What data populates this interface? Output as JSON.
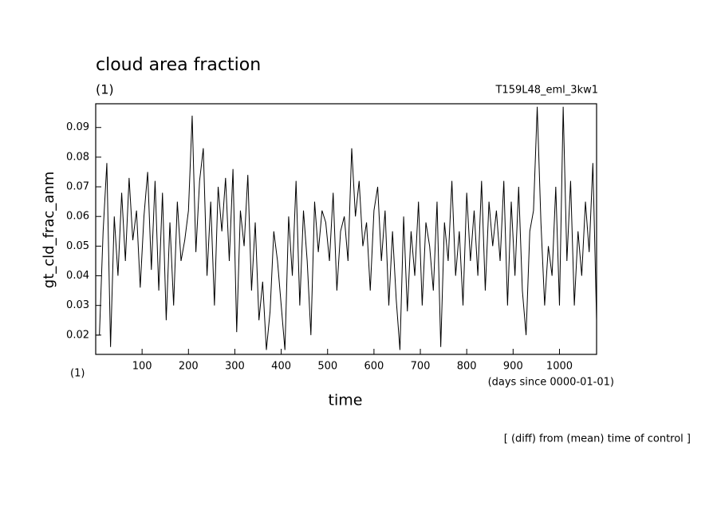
{
  "chart_data": {
    "type": "line",
    "title": "cloud area fraction",
    "subtitle": "(1)",
    "run_label": "T159L48_eml_3kw1",
    "y_label": "gt_cld_frac_anm",
    "x_label": "time",
    "x_unit_left": "(1)",
    "x_unit_right": "(days since 0000-01-01)",
    "note": "[ (diff) from (mean) time of control ]",
    "x": [
      0,
      8,
      16,
      24,
      32,
      40,
      48,
      56,
      64,
      72,
      80,
      88,
      96,
      104,
      112,
      120,
      128,
      136,
      144,
      152,
      160,
      168,
      176,
      184,
      192,
      200,
      208,
      216,
      224,
      232,
      240,
      248,
      256,
      264,
      272,
      280,
      288,
      296,
      304,
      312,
      320,
      328,
      336,
      344,
      352,
      360,
      368,
      376,
      384,
      392,
      400,
      408,
      416,
      424,
      432,
      440,
      448,
      456,
      464,
      472,
      480,
      488,
      496,
      504,
      512,
      520,
      528,
      536,
      544,
      552,
      560,
      568,
      576,
      584,
      592,
      600,
      608,
      616,
      624,
      632,
      640,
      648,
      656,
      664,
      672,
      680,
      688,
      696,
      704,
      712,
      720,
      728,
      736,
      744,
      752,
      760,
      768,
      776,
      784,
      792,
      800,
      808,
      816,
      824,
      832,
      840,
      848,
      856,
      864,
      872,
      880,
      888,
      896,
      904,
      912,
      920,
      928,
      936,
      944,
      952,
      960,
      968,
      976,
      984,
      992,
      1000,
      1008,
      1016,
      1024,
      1032,
      1040,
      1048,
      1056,
      1064,
      1072,
      1080
    ],
    "series": [
      {
        "name": "gt_cld_frac_anm",
        "color": "#000000",
        "values": [
          0.02,
          0.02,
          0.055,
          0.078,
          0.016,
          0.06,
          0.04,
          0.068,
          0.045,
          0.073,
          0.052,
          0.062,
          0.036,
          0.06,
          0.075,
          0.042,
          0.072,
          0.035,
          0.068,
          0.025,
          0.058,
          0.03,
          0.065,
          0.045,
          0.052,
          0.062,
          0.094,
          0.048,
          0.072,
          0.083,
          0.04,
          0.065,
          0.03,
          0.07,
          0.055,
          0.073,
          0.045,
          0.076,
          0.021,
          0.062,
          0.05,
          0.074,
          0.035,
          0.058,
          0.025,
          0.038,
          0.015,
          0.028,
          0.055,
          0.045,
          0.03,
          0.015,
          0.06,
          0.04,
          0.072,
          0.03,
          0.062,
          0.045,
          0.02,
          0.065,
          0.048,
          0.062,
          0.058,
          0.045,
          0.068,
          0.035,
          0.055,
          0.06,
          0.045,
          0.083,
          0.06,
          0.072,
          0.05,
          0.058,
          0.035,
          0.062,
          0.07,
          0.045,
          0.062,
          0.03,
          0.055,
          0.032,
          0.015,
          0.06,
          0.028,
          0.055,
          0.04,
          0.065,
          0.03,
          0.058,
          0.05,
          0.035,
          0.065,
          0.016,
          0.058,
          0.045,
          0.072,
          0.04,
          0.055,
          0.03,
          0.068,
          0.045,
          0.062,
          0.04,
          0.072,
          0.035,
          0.065,
          0.05,
          0.062,
          0.045,
          0.072,
          0.03,
          0.065,
          0.04,
          0.07,
          0.035,
          0.02,
          0.055,
          0.062,
          0.097,
          0.058,
          0.03,
          0.05,
          0.04,
          0.07,
          0.03,
          0.097,
          0.045,
          0.072,
          0.03,
          0.055,
          0.04,
          0.065,
          0.048,
          0.078,
          0.025
        ]
      }
    ],
    "xlim": [
      0,
      1080
    ],
    "ylim": [
      0.0135,
      0.098
    ],
    "xticks": [
      100,
      200,
      300,
      400,
      500,
      600,
      700,
      800,
      900,
      1000
    ],
    "yticks": [
      0.02,
      0.03,
      0.04,
      0.05,
      0.06,
      0.07,
      0.08,
      0.09
    ],
    "grid": false
  }
}
